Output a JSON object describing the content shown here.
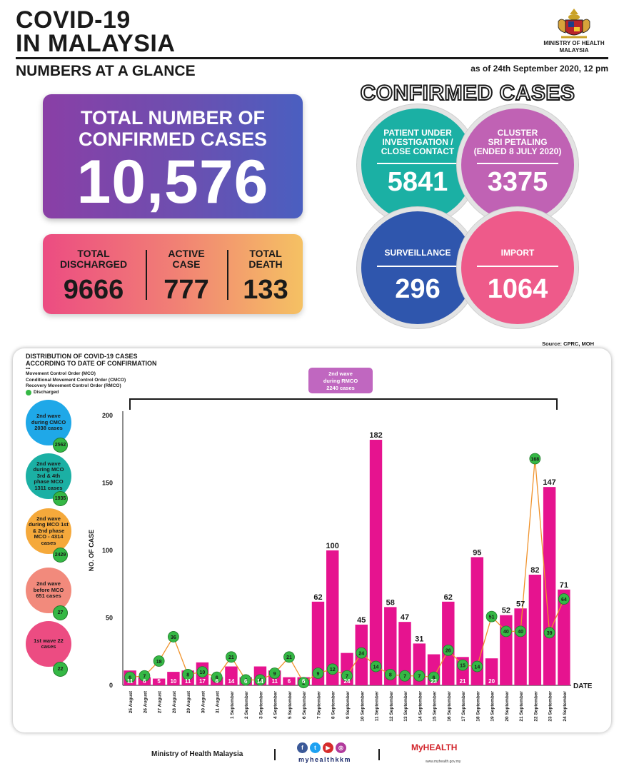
{
  "header": {
    "title_line1": "COVID-19",
    "title_line2": "IN MALAYSIA",
    "subtitle": "NUMBERS AT A GLANCE",
    "as_of": "as of 24th September 2020, 12 pm",
    "ministry_line1": "MINISTRY OF HEALTH",
    "ministry_line2": "MALAYSIA"
  },
  "total": {
    "label_line1": "TOTAL NUMBER OF",
    "label_line2": "CONFIRMED CASES",
    "value": "10,576"
  },
  "stats": [
    {
      "label_line1": "TOTAL",
      "label_line2": "DISCHARGED",
      "value": "9666"
    },
    {
      "label_line1": "ACTIVE",
      "label_line2": "CASE",
      "value": "777"
    },
    {
      "label_line1": "TOTAL",
      "label_line2": "DEATH",
      "value": "133"
    }
  ],
  "confirmed": {
    "title": "CONFIRMED CASES",
    "circles": [
      {
        "label_line1": "PATIENT UNDER",
        "label_line2": "INVESTIGATION /",
        "label_line3": "CLOSE CONTACT",
        "value": "5841",
        "color": "#1bb0a4"
      },
      {
        "label_line1": "CLUSTER",
        "label_line2": "SRI PETALING",
        "label_line3": "(ENDED 8 JULY 2020)",
        "value": "3375",
        "color": "#c062b4"
      },
      {
        "label_line1": "SURVEILLANCE",
        "label_line2": "",
        "label_line3": "",
        "value": "296",
        "color": "#2f56ad"
      },
      {
        "label_line1": "IMPORT",
        "label_line2": "",
        "label_line3": "",
        "value": "1064",
        "color": "#ee5a8a"
      }
    ]
  },
  "source": "Source: CPRC, MOH",
  "chart_panel": {
    "title_line1": "DISTRIBUTION OF COVID-19 CASES",
    "title_line2": "ACCORDING TO DATE OF CONFIRMATION",
    "legend_dots": "•••",
    "legend_mco": "Movement Control Order (MCO)",
    "legend_cmco": "Conditional Movement Control Order (CMCO)",
    "legend_rmco": "Recovery Movement Control Order (RMCO)",
    "legend_discharged": "Discharged",
    "wave_tag_line1": "2nd wave",
    "wave_tag_line2": "during RMCO",
    "wave_tag_line3": "2240 cases",
    "waves": [
      {
        "text": "2nd wave during CMCO 2038 cases",
        "badge": "2562",
        "color": "#1fa8e8"
      },
      {
        "text": "2nd wave during MCO 3rd & 4th phase MCO 1311 cases",
        "badge": "1935",
        "color": "#1bb0a4"
      },
      {
        "text": "2nd wave during MCO 1st & 2nd phase MCO - 4314 cases",
        "badge": "2429",
        "color": "#f5a93b"
      },
      {
        "text": "2nd wave before MCO 651 cases",
        "badge": "27",
        "color": "#f28a7c"
      },
      {
        "text": "1st wave 22 cases",
        "badge": "22",
        "color": "#ec4c82"
      }
    ]
  },
  "chart_data": {
    "type": "bar",
    "ylabel": "NO. OF CASE",
    "xlabel": "DATE",
    "ylim": [
      0,
      200
    ],
    "yticks": [
      0,
      50,
      100,
      150,
      200
    ],
    "categories": [
      "25 August",
      "26 August",
      "27 August",
      "28 August",
      "29 August",
      "30 August",
      "31 August",
      "1 September",
      "2 September",
      "3 September",
      "4 September",
      "5 September",
      "6 September",
      "7 September",
      "8 September",
      "9 September",
      "10 September",
      "11 September",
      "12 September",
      "13 September",
      "14 September",
      "15 September",
      "16 September",
      "17 September",
      "18 September",
      "19 September",
      "20 September",
      "21 September",
      "22 September",
      "23 September",
      "24 September"
    ],
    "series": [
      {
        "type": "bar",
        "color": "#e6138f",
        "values": [
          11,
          6,
          5,
          10,
          11,
          17,
          6,
          14,
          6,
          14,
          11,
          6,
          6,
          62,
          100,
          24,
          45,
          182,
          58,
          47,
          31,
          23,
          62,
          21,
          95,
          20,
          52,
          57,
          82,
          147,
          71
        ]
      },
      {
        "type": "line",
        "name": "Discharged",
        "color": "#f0922b",
        "values": [
          6,
          7,
          18,
          36,
          8,
          10,
          6,
          21,
          4,
          4,
          9,
          21,
          2,
          9,
          12,
          7,
          24,
          14,
          8,
          7,
          7,
          6,
          26,
          15,
          14,
          51,
          40,
          40,
          168,
          39,
          64
        ]
      }
    ]
  },
  "footer": {
    "ministry": "Ministry of Health Malaysia",
    "handle": "myhealthkkm",
    "brand": "MyHEALTH",
    "url": "www.myhealth.gov.my",
    "icons": [
      "f",
      "t",
      "▶",
      "◎"
    ]
  }
}
